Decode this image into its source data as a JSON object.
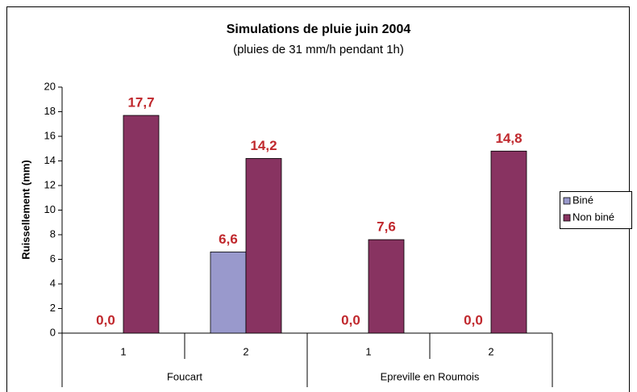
{
  "chart_data": {
    "type": "bar",
    "title": "Simulations de pluie juin 2004",
    "subtitle": "(pluies de 31 mm/h pendant 1h)",
    "y_label": "Ruissellement (mm)",
    "categories": [
      "1",
      "2",
      "1",
      "2"
    ],
    "groups": [
      "Foucart",
      "Epreville en Roumois"
    ],
    "series": [
      {
        "name": "Biné",
        "color": "#9999cc",
        "values": [
          0,
          6.6,
          0,
          0
        ],
        "value_labels": [
          "0,0",
          "6,6",
          "0,0",
          "0,0"
        ]
      },
      {
        "name": "Non biné",
        "color": "#883361",
        "values": [
          17.7,
          14.2,
          7.6,
          14.8
        ],
        "value_labels": [
          "17,7",
          "14,2",
          "7,6",
          "14,8"
        ]
      }
    ],
    "ylim": [
      0,
      20
    ],
    "yticks": [
      0,
      2,
      4,
      6,
      8,
      10,
      12,
      14,
      16,
      18,
      20
    ],
    "legend": "right"
  }
}
